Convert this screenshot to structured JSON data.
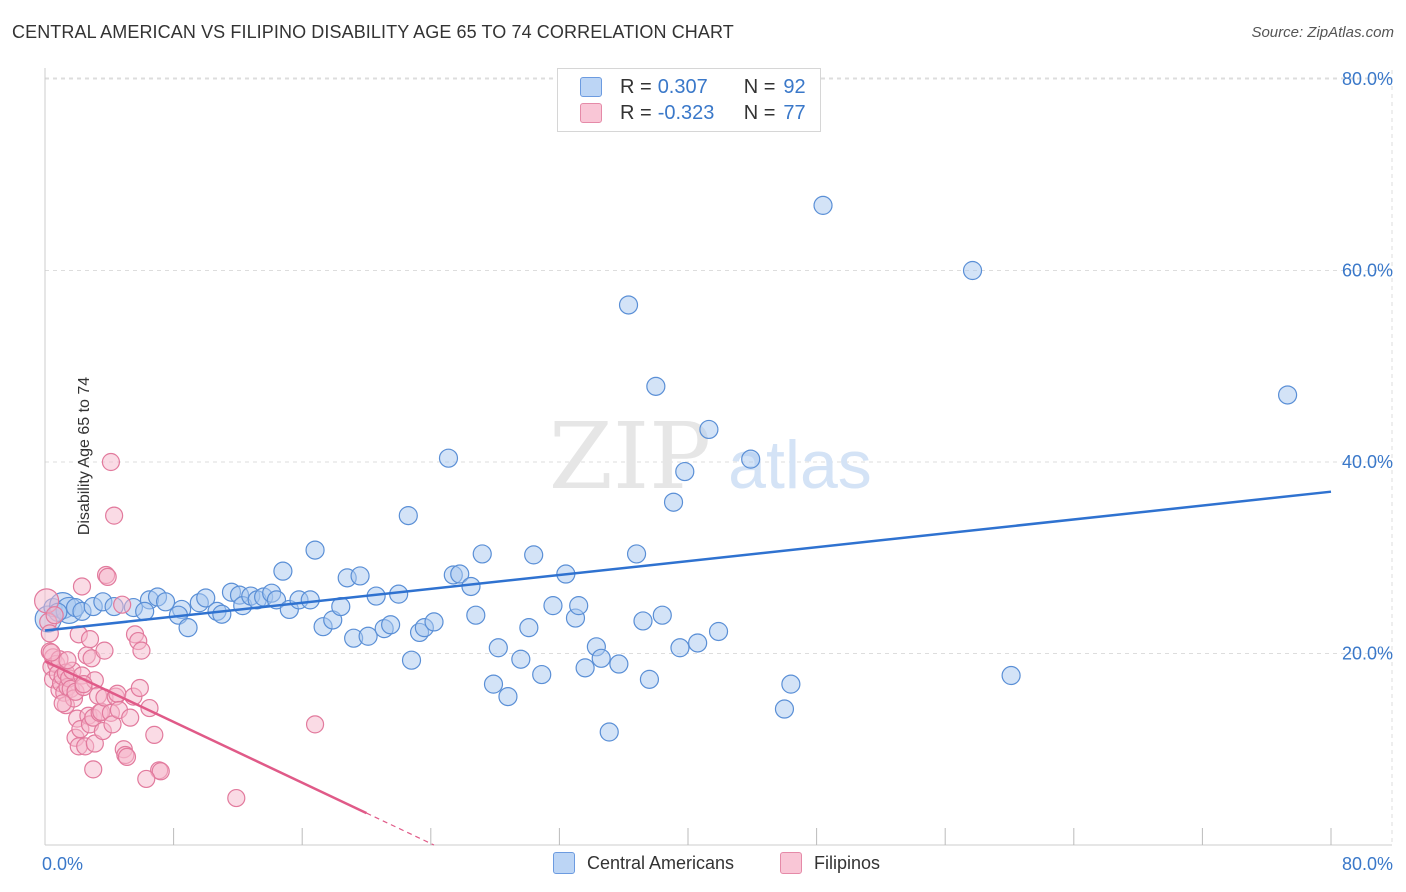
{
  "header": {
    "title": "CENTRAL AMERICAN VS FILIPINO DISABILITY AGE 65 TO 74 CORRELATION CHART",
    "source": "Source: ZipAtlas.com"
  },
  "watermark": {
    "zip": "ZIP",
    "atlas": "atlas"
  },
  "legend": {
    "r_label": "R =",
    "n_label": "N =",
    "central": {
      "r": "0.307",
      "n": "92"
    },
    "filipino": {
      "r": "-0.323",
      "n": "77"
    }
  },
  "colors": {
    "central_fill": "#a8c8f0",
    "central_stroke": "#5a8fd6",
    "central_line": "#2f72d0",
    "filipino_fill": "#f5b8cb",
    "filipino_stroke": "#e27a9d",
    "filipino_line": "#e05a88",
    "grid": "#dddddd",
    "axis_tick_label": "#3a78c9"
  },
  "chart_data": {
    "type": "scatter",
    "title": "CENTRAL AMERICAN VS FILIPINO DISABILITY AGE 65 TO 74 CORRELATION CHART",
    "xlabel": "",
    "ylabel": "Disability Age 65 to 74",
    "xlim": [
      0,
      80
    ],
    "ylim": [
      0,
      80
    ],
    "x_tick_labels": [
      "0.0%",
      "80.0%"
    ],
    "y_tick_labels": [
      {
        "value": 20,
        "label": "20.0%"
      },
      {
        "value": 40,
        "label": "40.0%"
      },
      {
        "value": 60,
        "label": "60.0%"
      },
      {
        "value": 80,
        "label": "80.0%"
      }
    ],
    "grid": true,
    "legend_position": "top-center",
    "series": [
      {
        "name": "Central Americans",
        "r": 0.307,
        "n": 92,
        "trend": {
          "x0": 0,
          "y0": 22.4,
          "x1": 80,
          "y1": 36.9,
          "solid_to": 80
        },
        "points": [
          [
            0.2,
            23.6
          ],
          [
            0.5,
            24.8
          ],
          [
            1.1,
            25.0
          ],
          [
            1.5,
            24.5
          ],
          [
            1.9,
            24.8
          ],
          [
            2.3,
            24.4
          ],
          [
            3.0,
            24.9
          ],
          [
            3.6,
            25.4
          ],
          [
            4.3,
            24.9
          ],
          [
            5.5,
            24.8
          ],
          [
            6.5,
            25.6
          ],
          [
            6.2,
            24.4
          ],
          [
            7.0,
            25.9
          ],
          [
            7.5,
            25.4
          ],
          [
            8.5,
            24.6
          ],
          [
            8.3,
            24.0
          ],
          [
            8.9,
            22.7
          ],
          [
            9.6,
            25.3
          ],
          [
            10.0,
            25.8
          ],
          [
            10.7,
            24.4
          ],
          [
            11.0,
            24.1
          ],
          [
            11.6,
            26.4
          ],
          [
            12.1,
            26.1
          ],
          [
            12.3,
            25.0
          ],
          [
            12.8,
            26.0
          ],
          [
            13.2,
            25.6
          ],
          [
            13.6,
            25.9
          ],
          [
            14.1,
            26.3
          ],
          [
            14.4,
            25.6
          ],
          [
            14.8,
            28.6
          ],
          [
            15.2,
            24.6
          ],
          [
            15.8,
            25.6
          ],
          [
            16.5,
            25.6
          ],
          [
            16.8,
            30.8
          ],
          [
            17.3,
            22.8
          ],
          [
            17.9,
            23.5
          ],
          [
            18.4,
            24.9
          ],
          [
            18.8,
            27.9
          ],
          [
            19.2,
            21.6
          ],
          [
            19.6,
            28.1
          ],
          [
            20.1,
            21.8
          ],
          [
            20.6,
            26.0
          ],
          [
            21.1,
            22.6
          ],
          [
            21.5,
            23.0
          ],
          [
            22.0,
            26.2
          ],
          [
            22.6,
            34.4
          ],
          [
            22.8,
            19.3
          ],
          [
            23.3,
            22.2
          ],
          [
            23.6,
            22.7
          ],
          [
            24.2,
            23.3
          ],
          [
            25.1,
            40.4
          ],
          [
            25.4,
            28.2
          ],
          [
            25.8,
            28.3
          ],
          [
            26.5,
            27.0
          ],
          [
            26.8,
            24.0
          ],
          [
            27.2,
            30.4
          ],
          [
            28.2,
            20.6
          ],
          [
            27.9,
            16.8
          ],
          [
            28.8,
            15.5
          ],
          [
            29.6,
            19.4
          ],
          [
            30.1,
            22.7
          ],
          [
            30.4,
            30.3
          ],
          [
            30.9,
            17.8
          ],
          [
            31.6,
            25.0
          ],
          [
            32.4,
            28.3
          ],
          [
            33.0,
            23.7
          ],
          [
            33.2,
            25.0
          ],
          [
            33.6,
            18.5
          ],
          [
            34.3,
            20.7
          ],
          [
            34.6,
            19.5
          ],
          [
            35.1,
            11.8
          ],
          [
            35.7,
            18.9
          ],
          [
            36.3,
            56.4
          ],
          [
            36.8,
            30.4
          ],
          [
            37.2,
            23.4
          ],
          [
            37.6,
            17.3
          ],
          [
            38.0,
            47.9
          ],
          [
            38.4,
            24.0
          ],
          [
            39.1,
            35.8
          ],
          [
            39.5,
            20.6
          ],
          [
            39.8,
            39.0
          ],
          [
            40.6,
            21.1
          ],
          [
            41.3,
            43.4
          ],
          [
            41.9,
            22.3
          ],
          [
            43.9,
            40.3
          ],
          [
            46.0,
            14.2
          ],
          [
            46.4,
            16.8
          ],
          [
            48.4,
            66.8
          ],
          [
            57.7,
            60.0
          ],
          [
            60.1,
            17.7
          ],
          [
            77.3,
            47.0
          ],
          [
            0.8,
            24.3
          ]
        ]
      },
      {
        "name": "Filipinos",
        "r": -0.323,
        "n": 77,
        "trend": {
          "x0": 0,
          "y0": 19.2,
          "x1": 24.2,
          "y1": 0,
          "solid_to": 20.0
        },
        "points": [
          [
            0.1,
            25.5
          ],
          [
            0.2,
            23.3
          ],
          [
            0.3,
            22.1
          ],
          [
            0.3,
            20.2
          ],
          [
            0.4,
            18.6
          ],
          [
            0.5,
            19.6
          ],
          [
            0.5,
            17.3
          ],
          [
            0.6,
            24.0
          ],
          [
            0.7,
            18.9
          ],
          [
            0.8,
            17.9
          ],
          [
            0.9,
            19.4
          ],
          [
            0.9,
            16.2
          ],
          [
            1.0,
            16.9
          ],
          [
            1.1,
            17.6
          ],
          [
            1.2,
            15.9
          ],
          [
            1.3,
            18.0
          ],
          [
            1.3,
            14.6
          ],
          [
            1.4,
            16.5
          ],
          [
            1.5,
            17.4
          ],
          [
            1.6,
            16.3
          ],
          [
            1.7,
            18.2
          ],
          [
            1.8,
            15.3
          ],
          [
            1.9,
            16.0
          ],
          [
            1.9,
            11.2
          ],
          [
            2.0,
            13.2
          ],
          [
            2.1,
            22.0
          ],
          [
            2.1,
            10.3
          ],
          [
            2.2,
            12.1
          ],
          [
            2.3,
            27.0
          ],
          [
            2.3,
            17.7
          ],
          [
            2.4,
            16.5
          ],
          [
            2.5,
            10.3
          ],
          [
            2.6,
            19.8
          ],
          [
            2.7,
            13.5
          ],
          [
            2.8,
            21.5
          ],
          [
            2.8,
            12.6
          ],
          [
            2.9,
            19.5
          ],
          [
            3.0,
            13.3
          ],
          [
            3.0,
            7.9
          ],
          [
            3.1,
            17.2
          ],
          [
            3.1,
            10.6
          ],
          [
            3.3,
            15.6
          ],
          [
            3.4,
            13.8
          ],
          [
            3.5,
            13.9
          ],
          [
            3.6,
            11.9
          ],
          [
            3.7,
            15.4
          ],
          [
            3.7,
            20.3
          ],
          [
            3.8,
            28.2
          ],
          [
            3.9,
            28.0
          ],
          [
            4.1,
            13.8
          ],
          [
            4.1,
            40.0
          ],
          [
            4.2,
            12.6
          ],
          [
            4.4,
            15.5
          ],
          [
            4.5,
            15.8
          ],
          [
            4.6,
            14.1
          ],
          [
            4.3,
            34.4
          ],
          [
            4.8,
            25.1
          ],
          [
            4.9,
            10.0
          ],
          [
            5.0,
            9.4
          ],
          [
            5.1,
            9.2
          ],
          [
            5.3,
            13.3
          ],
          [
            5.5,
            15.5
          ],
          [
            5.6,
            22.0
          ],
          [
            5.8,
            21.3
          ],
          [
            5.9,
            16.4
          ],
          [
            6.0,
            20.3
          ],
          [
            6.5,
            14.3
          ],
          [
            6.8,
            11.5
          ],
          [
            7.1,
            7.8
          ],
          [
            7.2,
            7.7
          ],
          [
            6.3,
            6.9
          ],
          [
            11.9,
            4.9
          ],
          [
            16.8,
            12.6
          ],
          [
            0.4,
            20.1
          ],
          [
            1.1,
            14.8
          ],
          [
            2.4,
            16.8
          ],
          [
            1.4,
            19.3
          ]
        ]
      }
    ]
  }
}
